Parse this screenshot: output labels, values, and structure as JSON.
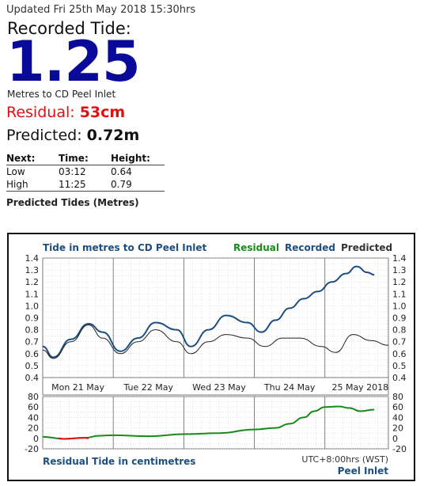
{
  "header": {
    "updated": "Updated Fri 25th May 2018 15:30hrs",
    "recorded_title": "Recorded Tide:",
    "recorded_value": "1.25",
    "recorded_sub": "Metres to CD Peel Inlet",
    "residual_label": "Residual: ",
    "residual_value": "53cm",
    "predicted_label": "Predicted: ",
    "predicted_value": "0.72m"
  },
  "tide_table": {
    "headers": [
      "Next:",
      "Time:",
      "Height:"
    ],
    "rows": [
      [
        "Low",
        "03:12",
        "0.64"
      ],
      [
        "High",
        "11:25",
        "0.79"
      ]
    ],
    "caption": "Predicted Tides (Metres)"
  },
  "colors": {
    "recorded": "#1d4e80",
    "predicted": "#222222",
    "residual": "#1a8a1a",
    "residual_negative": "#e01010",
    "title_blue": "#1d4e80",
    "grid": "#c8c8c8"
  },
  "chart_data": [
    {
      "type": "line",
      "title": "Tide in metres to CD Peel Inlet",
      "legend": [
        "Residual",
        "Recorded",
        "Predicted"
      ],
      "xlabels": [
        "Mon 21 May",
        "Tue 22 May",
        "Wed 23 May",
        "Thu 24 May",
        "25 May 2018"
      ],
      "ylim": [
        0.4,
        1.4
      ],
      "yticks": [
        "1.4",
        "1.3",
        "1.2",
        "1.1",
        "1.0",
        "0.9",
        "0.8",
        "0.7",
        "0.6",
        "0.5",
        "0.4"
      ],
      "x_days": [
        0,
        0.25,
        0.5,
        0.75,
        1,
        1.25,
        1.5,
        1.75,
        2,
        2.25,
        2.5,
        2.75,
        3,
        3.25,
        3.5,
        3.75,
        4,
        4.25,
        4.5,
        4.75,
        4.9
      ],
      "series": [
        {
          "name": "Recorded",
          "x": [
            0,
            0.15,
            0.4,
            0.65,
            0.85,
            1.1,
            1.35,
            1.6,
            1.9,
            2.1,
            2.35,
            2.6,
            2.9,
            3.1,
            3.3,
            3.5,
            3.7,
            3.9,
            4.1,
            4.3,
            4.45,
            4.6,
            4.7
          ],
          "y": [
            0.66,
            0.57,
            0.72,
            0.85,
            0.78,
            0.62,
            0.73,
            0.86,
            0.8,
            0.66,
            0.8,
            0.92,
            0.86,
            0.78,
            0.88,
            0.98,
            1.06,
            1.12,
            1.2,
            1.27,
            1.33,
            1.28,
            1.26
          ]
        },
        {
          "name": "Predicted",
          "x": [
            0,
            0.15,
            0.4,
            0.65,
            0.85,
            1.1,
            1.35,
            1.6,
            1.9,
            2.1,
            2.35,
            2.6,
            2.9,
            3.15,
            3.4,
            3.65,
            3.95,
            4.15,
            4.4,
            4.65,
            4.9
          ],
          "y": [
            0.63,
            0.56,
            0.7,
            0.84,
            0.73,
            0.6,
            0.7,
            0.8,
            0.7,
            0.6,
            0.7,
            0.76,
            0.73,
            0.66,
            0.73,
            0.73,
            0.66,
            0.61,
            0.76,
            0.71,
            0.67
          ]
        }
      ]
    },
    {
      "type": "line",
      "title": "Residual Tide in centimetres",
      "ylim": [
        -20,
        80
      ],
      "yticks": [
        "80",
        "60",
        "40",
        "20",
        "0",
        "-20"
      ],
      "timezone": "UTC+8:00hrs (WST)",
      "location": "Peel Inlet",
      "series": [
        {
          "name": "Residual",
          "x": [
            0,
            0.3,
            0.6,
            0.8,
            1.0,
            1.5,
            2.0,
            2.5,
            3.0,
            3.3,
            3.5,
            3.7,
            3.85,
            4.0,
            4.2,
            4.35,
            4.5,
            4.7
          ],
          "y": [
            3,
            -1,
            1,
            5,
            6,
            4,
            8,
            10,
            17,
            20,
            28,
            40,
            52,
            60,
            61,
            58,
            52,
            55
          ]
        }
      ]
    }
  ]
}
